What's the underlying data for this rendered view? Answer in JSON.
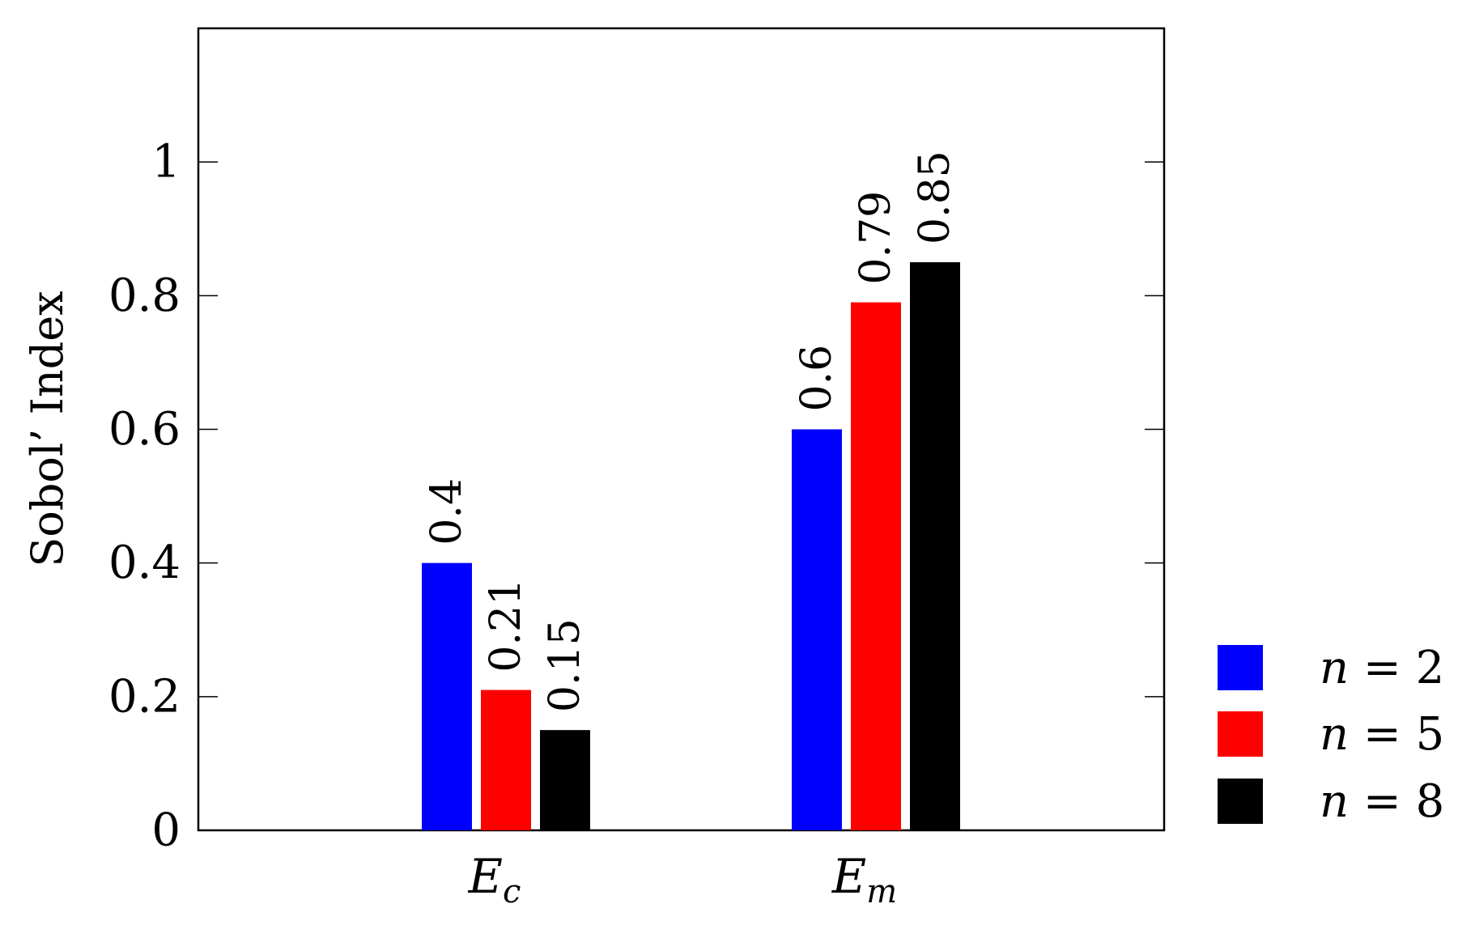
{
  "chart_data": {
    "type": "bar",
    "title": "",
    "xlabel": "",
    "ylabel": "Sobol’ Index",
    "categories": [
      {
        "base": "E",
        "sub": "c"
      },
      {
        "base": "E",
        "sub": "m"
      }
    ],
    "series": [
      {
        "name": "n = 2",
        "legend_var": "n",
        "legend_rest": " = 2",
        "color": "#0000ff",
        "values": [
          0.4,
          0.6
        ],
        "labels": [
          "0.4",
          "0.6"
        ]
      },
      {
        "name": "n = 5",
        "legend_var": "n",
        "legend_rest": " = 5",
        "color": "#ff0000",
        "values": [
          0.21,
          0.79
        ],
        "labels": [
          "0.21",
          "0.79"
        ]
      },
      {
        "name": "n = 8",
        "legend_var": "n",
        "legend_rest": " = 8",
        "color": "#000000",
        "values": [
          0.15,
          0.85
        ],
        "labels": [
          "0.15",
          "0.85"
        ]
      }
    ],
    "ylim": [
      0,
      1.2
    ],
    "yticks": [
      0,
      0.2,
      0.4,
      0.6,
      0.8,
      1
    ],
    "ytick_labels": [
      "0",
      "0.2",
      "0.4",
      "0.6",
      "0.8",
      "1"
    ],
    "grid": false,
    "legend_position": "right-bottom, outside plot"
  }
}
